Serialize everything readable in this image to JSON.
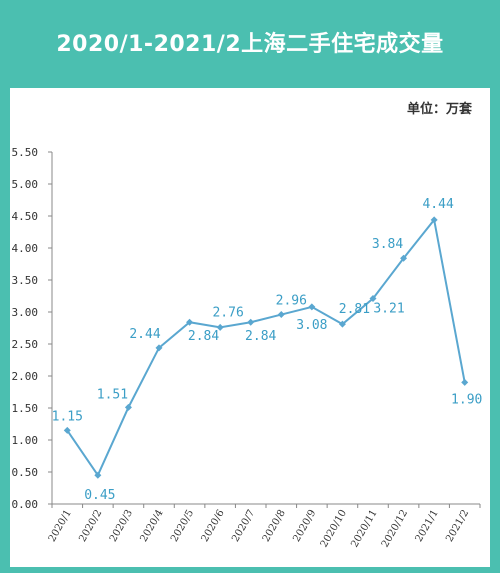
{
  "header": {
    "title": "2020/1-2021/2上海二手住宅成交量",
    "unit_label": "单位：万套"
  },
  "colors": {
    "background": "#4bbfb0",
    "line": "#5aa7d0",
    "label": "#3b9ec6",
    "axis": "#888888"
  },
  "chart_data": {
    "type": "line",
    "title": "2020/1-2021/2上海二手住宅成交量",
    "xlabel": "",
    "ylabel": "",
    "unit": "万套",
    "ylim": [
      0,
      5.5
    ],
    "yticks": [
      "0.00",
      "0.50",
      "1.00",
      "1.50",
      "2.00",
      "2.50",
      "3.00",
      "3.50",
      "4.00",
      "4.50",
      "5.00",
      "5.50"
    ],
    "categories": [
      "2020/1",
      "2020/2",
      "2020/3",
      "2020/4",
      "2020/5",
      "2020/6",
      "2020/7",
      "2020/8",
      "2020/9",
      "2020/10",
      "2020/11",
      "2020/12",
      "2021/1",
      "2021/2"
    ],
    "values": [
      1.15,
      0.45,
      1.51,
      2.44,
      2.84,
      2.76,
      2.84,
      2.96,
      3.08,
      2.81,
      3.21,
      3.84,
      4.44,
      1.9
    ],
    "data_labels": [
      "1.15",
      "0.45",
      "1.51",
      "2.44",
      "2.84",
      "2.76",
      "2.84",
      "2.96",
      "3.08",
      "2.81",
      "3.21",
      "3.84",
      "4.44",
      "1.90"
    ],
    "grid": false,
    "legend": "none"
  }
}
